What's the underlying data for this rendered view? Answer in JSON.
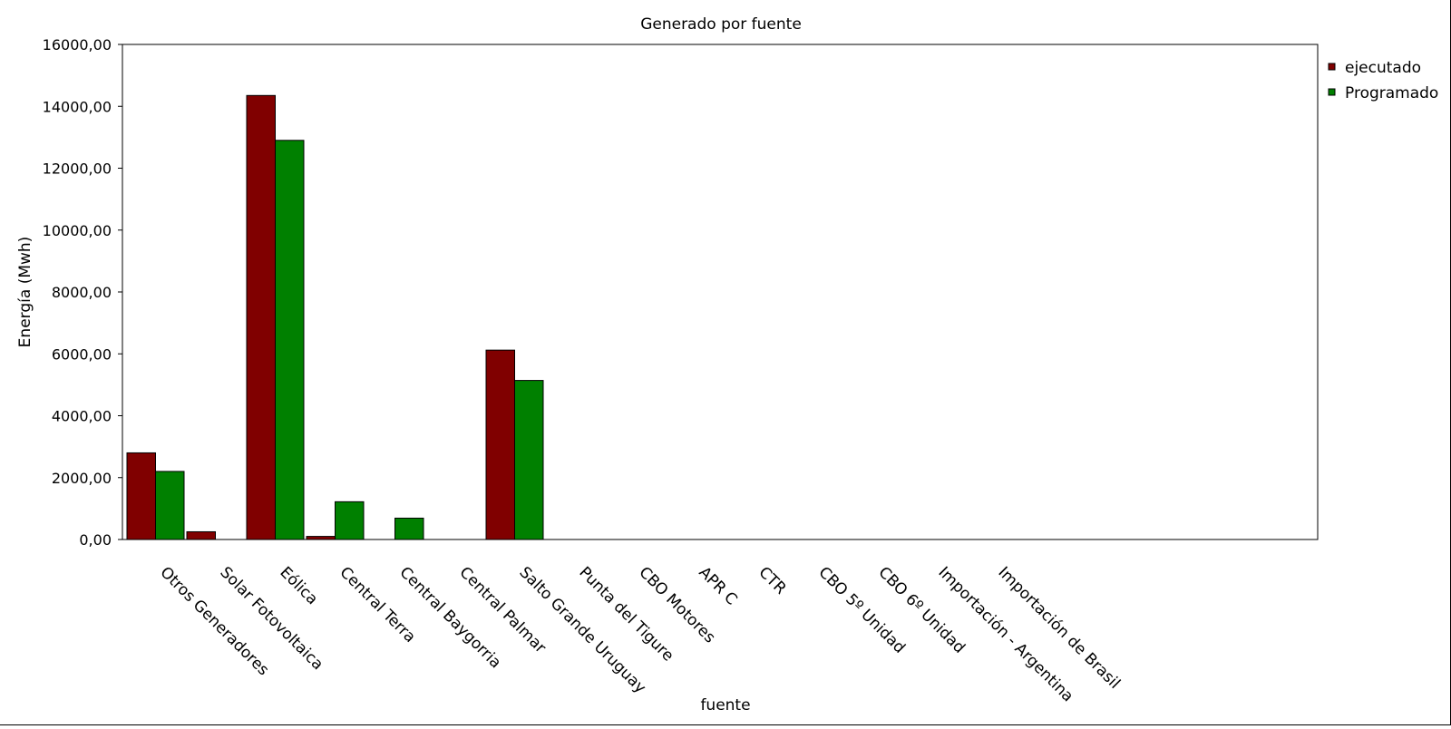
{
  "chart_data": {
    "type": "bar",
    "title": "Generado por fuente",
    "xlabel": "fuente",
    "ylabel": "Energía (Mwh)",
    "ylim": [
      0,
      16000
    ],
    "yticks": [
      "0,00",
      "2000,00",
      "4000,00",
      "6000,00",
      "8000,00",
      "10000,00",
      "12000,00",
      "14000,00",
      "16000,00"
    ],
    "ytick_values": [
      0,
      2000,
      4000,
      6000,
      8000,
      10000,
      12000,
      14000,
      16000
    ],
    "categories": [
      "Otros Generadores",
      "Solar Fotovoltaica",
      "Eólica",
      "Central Terra",
      "Central Baygorria",
      "Central Palmar",
      "Salto Grande Uruguay",
      "Punta del Tigure",
      "CBO Motores",
      "APR C",
      "CTR",
      "CBO 5º Unidad",
      "CBO 6º Unidad",
      "Importación - Argentina",
      "Importación de Brasil"
    ],
    "series": [
      {
        "name": "ejecutado",
        "color": "#800000",
        "values": [
          2800,
          250,
          14350,
          100,
          0,
          0,
          6120,
          0,
          0,
          0,
          0,
          0,
          0,
          0,
          0
        ]
      },
      {
        "name": "Programado",
        "color": "#008000",
        "values": [
          2200,
          0,
          12900,
          1220,
          690,
          0,
          5140,
          0,
          0,
          0,
          0,
          0,
          0,
          0,
          0
        ]
      }
    ],
    "legend_position": "top-right",
    "grid": false
  }
}
